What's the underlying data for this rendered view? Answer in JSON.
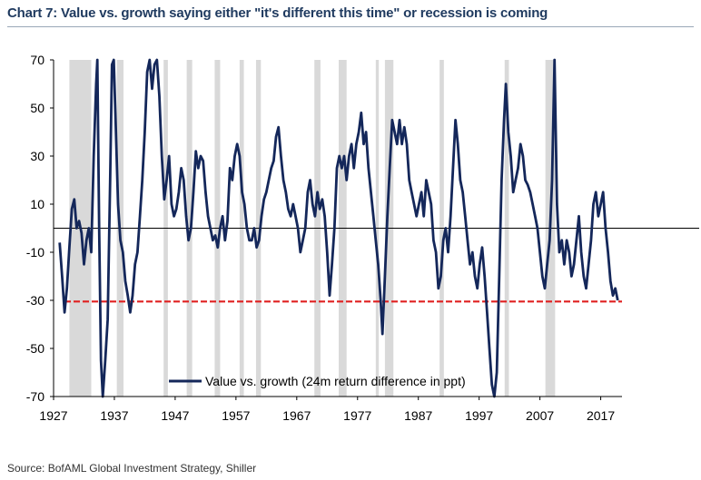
{
  "title": "Chart 7: Value vs. growth saying either \"it's different this time\" or recession is coming",
  "source": "Source: BofAML Global Investment Strategy, Shiller",
  "colors": {
    "series": "#14275a",
    "threshold": "#e02020",
    "zero_line": "#000000",
    "recession": "#d9d9d9",
    "title": "#1f3a5f"
  },
  "chart_data": {
    "type": "line",
    "xlim": [
      1927,
      2020.5
    ],
    "ylim": [
      -70,
      70
    ],
    "y_ticks": [
      70,
      50,
      30,
      10,
      -10,
      -30,
      -50,
      -70
    ],
    "x_ticks": [
      1927,
      1937,
      1947,
      1957,
      1967,
      1977,
      1987,
      1997,
      2007,
      2017
    ],
    "zero_line": 0,
    "threshold": {
      "value": -30.5,
      "style": "dashed",
      "color": "#e02020"
    },
    "legend": {
      "placement": "bottom-center",
      "entries": [
        "Value vs. growth (24m return difference in ppt)"
      ]
    },
    "recession_bands": [
      [
        1929.6,
        1933.2
      ],
      [
        1937.4,
        1938.5
      ],
      [
        1945.1,
        1945.8
      ],
      [
        1948.9,
        1949.8
      ],
      [
        1953.5,
        1954.4
      ],
      [
        1957.6,
        1958.3
      ],
      [
        1960.3,
        1961.1
      ],
      [
        1969.9,
        1970.9
      ],
      [
        1973.9,
        1975.2
      ],
      [
        1980.0,
        1980.5
      ],
      [
        1981.5,
        1982.9
      ],
      [
        1990.5,
        1991.2
      ],
      [
        2001.2,
        2001.9
      ],
      [
        2007.9,
        2009.5
      ]
    ],
    "series": [
      {
        "name": "Value vs. growth (24m return difference in ppt)",
        "points": [
          [
            1928.0,
            -6
          ],
          [
            1928.4,
            -20
          ],
          [
            1928.8,
            -35
          ],
          [
            1929.2,
            -25
          ],
          [
            1929.6,
            -8
          ],
          [
            1930.0,
            8
          ],
          [
            1930.4,
            12
          ],
          [
            1930.8,
            0
          ],
          [
            1931.2,
            3
          ],
          [
            1931.6,
            -2
          ],
          [
            1932.0,
            -15
          ],
          [
            1932.4,
            -5
          ],
          [
            1932.8,
            0
          ],
          [
            1933.2,
            -10
          ],
          [
            1933.6,
            30
          ],
          [
            1934.0,
            60
          ],
          [
            1934.2,
            70
          ],
          [
            1934.5,
            0
          ],
          [
            1934.8,
            -55
          ],
          [
            1935.1,
            -70
          ],
          [
            1935.5,
            -55
          ],
          [
            1935.9,
            -38
          ],
          [
            1936.3,
            20
          ],
          [
            1936.6,
            68
          ],
          [
            1936.9,
            70
          ],
          [
            1937.2,
            45
          ],
          [
            1937.6,
            10
          ],
          [
            1938.0,
            -5
          ],
          [
            1938.4,
            -10
          ],
          [
            1938.8,
            -22
          ],
          [
            1939.2,
            -28
          ],
          [
            1939.6,
            -35
          ],
          [
            1940.0,
            -28
          ],
          [
            1940.4,
            -15
          ],
          [
            1940.8,
            -10
          ],
          [
            1941.2,
            5
          ],
          [
            1941.6,
            20
          ],
          [
            1942.0,
            40
          ],
          [
            1942.4,
            65
          ],
          [
            1942.8,
            70
          ],
          [
            1943.2,
            58
          ],
          [
            1943.6,
            68
          ],
          [
            1944.0,
            70
          ],
          [
            1944.4,
            55
          ],
          [
            1944.8,
            30
          ],
          [
            1945.2,
            12
          ],
          [
            1945.6,
            20
          ],
          [
            1946.0,
            30
          ],
          [
            1946.4,
            10
          ],
          [
            1946.8,
            5
          ],
          [
            1947.2,
            8
          ],
          [
            1947.6,
            15
          ],
          [
            1948.0,
            25
          ],
          [
            1948.4,
            20
          ],
          [
            1948.8,
            5
          ],
          [
            1949.2,
            -5
          ],
          [
            1949.6,
            0
          ],
          [
            1950.0,
            15
          ],
          [
            1950.4,
            32
          ],
          [
            1950.8,
            25
          ],
          [
            1951.2,
            30
          ],
          [
            1951.6,
            28
          ],
          [
            1952.0,
            15
          ],
          [
            1952.4,
            5
          ],
          [
            1952.8,
            0
          ],
          [
            1953.2,
            -5
          ],
          [
            1953.6,
            -3
          ],
          [
            1954.0,
            -8
          ],
          [
            1954.4,
            0
          ],
          [
            1954.8,
            5
          ],
          [
            1955.2,
            -5
          ],
          [
            1955.6,
            3
          ],
          [
            1956.0,
            25
          ],
          [
            1956.4,
            20
          ],
          [
            1956.8,
            30
          ],
          [
            1957.2,
            35
          ],
          [
            1957.6,
            30
          ],
          [
            1958.0,
            15
          ],
          [
            1958.4,
            10
          ],
          [
            1958.8,
            0
          ],
          [
            1959.2,
            -5
          ],
          [
            1959.6,
            -5
          ],
          [
            1960.0,
            0
          ],
          [
            1960.4,
            -8
          ],
          [
            1960.8,
            -5
          ],
          [
            1961.2,
            5
          ],
          [
            1961.6,
            12
          ],
          [
            1962.0,
            15
          ],
          [
            1962.4,
            20
          ],
          [
            1962.8,
            25
          ],
          [
            1963.2,
            28
          ],
          [
            1963.6,
            38
          ],
          [
            1964.0,
            42
          ],
          [
            1964.4,
            30
          ],
          [
            1964.8,
            20
          ],
          [
            1965.2,
            15
          ],
          [
            1965.6,
            8
          ],
          [
            1966.0,
            5
          ],
          [
            1966.4,
            10
          ],
          [
            1966.8,
            5
          ],
          [
            1967.2,
            0
          ],
          [
            1967.6,
            -10
          ],
          [
            1968.0,
            -5
          ],
          [
            1968.4,
            0
          ],
          [
            1968.8,
            15
          ],
          [
            1969.2,
            20
          ],
          [
            1969.6,
            10
          ],
          [
            1970.0,
            5
          ],
          [
            1970.4,
            15
          ],
          [
            1970.8,
            8
          ],
          [
            1971.2,
            12
          ],
          [
            1971.6,
            5
          ],
          [
            1972.0,
            -10
          ],
          [
            1972.4,
            -28
          ],
          [
            1972.8,
            -15
          ],
          [
            1973.2,
            0
          ],
          [
            1973.6,
            25
          ],
          [
            1974.0,
            30
          ],
          [
            1974.4,
            25
          ],
          [
            1974.8,
            30
          ],
          [
            1975.2,
            20
          ],
          [
            1975.6,
            30
          ],
          [
            1976.0,
            35
          ],
          [
            1976.4,
            25
          ],
          [
            1976.8,
            35
          ],
          [
            1977.2,
            40
          ],
          [
            1977.6,
            48
          ],
          [
            1978.0,
            35
          ],
          [
            1978.4,
            40
          ],
          [
            1978.8,
            25
          ],
          [
            1979.2,
            15
          ],
          [
            1979.6,
            5
          ],
          [
            1980.0,
            -5
          ],
          [
            1980.4,
            -15
          ],
          [
            1980.8,
            -30
          ],
          [
            1981.1,
            -44
          ],
          [
            1981.5,
            -20
          ],
          [
            1981.9,
            5
          ],
          [
            1982.3,
            25
          ],
          [
            1982.7,
            45
          ],
          [
            1983.1,
            40
          ],
          [
            1983.5,
            35
          ],
          [
            1983.9,
            45
          ],
          [
            1984.3,
            35
          ],
          [
            1984.7,
            42
          ],
          [
            1985.1,
            35
          ],
          [
            1985.5,
            20
          ],
          [
            1985.9,
            15
          ],
          [
            1986.3,
            10
          ],
          [
            1986.7,
            5
          ],
          [
            1987.1,
            10
          ],
          [
            1987.5,
            15
          ],
          [
            1987.9,
            5
          ],
          [
            1988.3,
            20
          ],
          [
            1988.7,
            15
          ],
          [
            1989.1,
            10
          ],
          [
            1989.5,
            -5
          ],
          [
            1989.9,
            -10
          ],
          [
            1990.3,
            -25
          ],
          [
            1990.7,
            -20
          ],
          [
            1991.1,
            -5
          ],
          [
            1991.5,
            0
          ],
          [
            1991.9,
            -10
          ],
          [
            1992.3,
            5
          ],
          [
            1992.7,
            25
          ],
          [
            1993.1,
            45
          ],
          [
            1993.5,
            35
          ],
          [
            1993.9,
            20
          ],
          [
            1994.3,
            15
          ],
          [
            1994.7,
            5
          ],
          [
            1995.1,
            -5
          ],
          [
            1995.5,
            -15
          ],
          [
            1995.9,
            -10
          ],
          [
            1996.3,
            -20
          ],
          [
            1996.7,
            -25
          ],
          [
            1997.1,
            -15
          ],
          [
            1997.5,
            -8
          ],
          [
            1997.9,
            -20
          ],
          [
            1998.3,
            -35
          ],
          [
            1998.7,
            -50
          ],
          [
            1999.1,
            -65
          ],
          [
            1999.5,
            -70
          ],
          [
            1999.9,
            -60
          ],
          [
            2000.3,
            -20
          ],
          [
            2000.7,
            20
          ],
          [
            2001.1,
            45
          ],
          [
            2001.4,
            60
          ],
          [
            2001.8,
            40
          ],
          [
            2002.2,
            30
          ],
          [
            2002.6,
            15
          ],
          [
            2003.0,
            20
          ],
          [
            2003.4,
            25
          ],
          [
            2003.8,
            35
          ],
          [
            2004.2,
            30
          ],
          [
            2004.6,
            20
          ],
          [
            2005.0,
            18
          ],
          [
            2005.4,
            15
          ],
          [
            2005.8,
            10
          ],
          [
            2006.2,
            5
          ],
          [
            2006.6,
            0
          ],
          [
            2007.0,
            -10
          ],
          [
            2007.4,
            -20
          ],
          [
            2007.8,
            -25
          ],
          [
            2008.2,
            -15
          ],
          [
            2008.6,
            -5
          ],
          [
            2009.0,
            20
          ],
          [
            2009.4,
            70
          ],
          [
            2009.8,
            10
          ],
          [
            2010.2,
            -10
          ],
          [
            2010.6,
            -5
          ],
          [
            2011.0,
            -15
          ],
          [
            2011.4,
            -5
          ],
          [
            2011.8,
            -10
          ],
          [
            2012.2,
            -20
          ],
          [
            2012.6,
            -15
          ],
          [
            2013.0,
            -5
          ],
          [
            2013.4,
            5
          ],
          [
            2013.8,
            -10
          ],
          [
            2014.2,
            -20
          ],
          [
            2014.6,
            -25
          ],
          [
            2015.0,
            -15
          ],
          [
            2015.4,
            -5
          ],
          [
            2015.8,
            10
          ],
          [
            2016.2,
            15
          ],
          [
            2016.6,
            5
          ],
          [
            2017.0,
            10
          ],
          [
            2017.4,
            15
          ],
          [
            2017.8,
            0
          ],
          [
            2018.2,
            -10
          ],
          [
            2018.6,
            -22
          ],
          [
            2019.0,
            -28
          ],
          [
            2019.4,
            -25
          ],
          [
            2019.8,
            -30
          ]
        ]
      }
    ]
  }
}
